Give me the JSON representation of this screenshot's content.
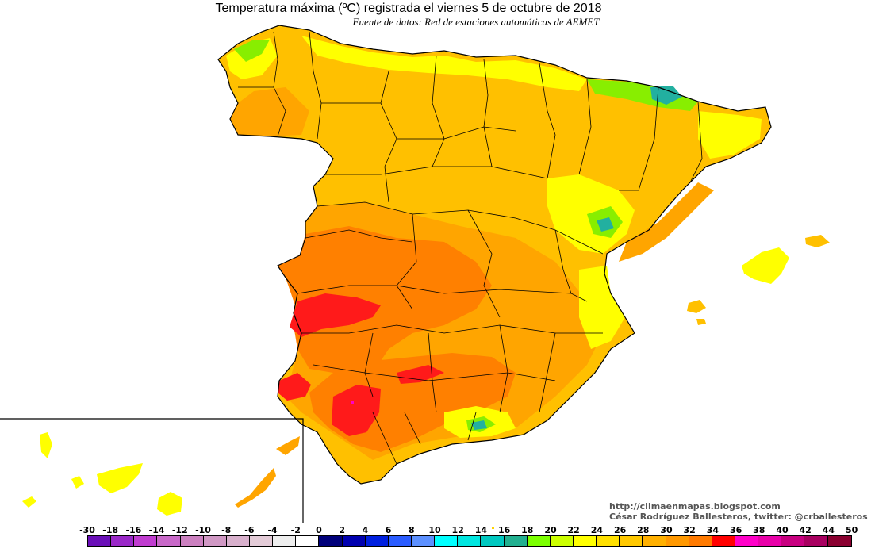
{
  "title": "Temperatura máxima (ºC) registrada el viernes 5 de octubre de 2018",
  "subtitle": "Fuente de datos: Red de estaciones automáticas de AEMET",
  "credits": {
    "url": "http://climaenmapas.blogspot.com",
    "author": "César Rodríguez Ballesteros, twitter: @crballesteros"
  },
  "legend": {
    "labels": [
      "-30",
      "-18",
      "-16",
      "-14",
      "-12",
      "-10",
      "-8",
      "-6",
      "-4",
      "-2",
      "0",
      "2",
      "4",
      "6",
      "8",
      "10",
      "12",
      "14",
      "16",
      "18",
      "20",
      "22",
      "24",
      "26",
      "28",
      "30",
      "32",
      "34",
      "36",
      "38",
      "40",
      "42",
      "44",
      "50"
    ],
    "colors": [
      "#6a0fb8",
      "#9a28c8",
      "#c03cd0",
      "#c868c8",
      "#cc80c0",
      "#d098c4",
      "#d8b0cc",
      "#e4ccd8",
      "#eeeeee",
      "#ffffff",
      "#00007a",
      "#0000b0",
      "#0020e0",
      "#2a5cff",
      "#5c90ff",
      "#00ffff",
      "#00e6e0",
      "#00c8c0",
      "#22b090",
      "#7cff00",
      "#ccff00",
      "#ffff00",
      "#ffe000",
      "#ffc800",
      "#ffb000",
      "#ff9800",
      "#ff7a00",
      "#ff0000",
      "#ff00c8",
      "#e800a8",
      "#c80080",
      "#a80060",
      "#8a0030"
    ]
  },
  "map_colors": {
    "background": "#ffffff",
    "base": "#ffc000",
    "warm": "#ffa500",
    "hot": "#ff8000",
    "hottest": "#ff1a1a",
    "cool": "#ffff00",
    "cold": "#88ee00",
    "coldest": "#22b0a0",
    "border": "#000000"
  },
  "regions": [
    "Península Ibérica",
    "Islas Baleares",
    "Islas Canarias"
  ]
}
